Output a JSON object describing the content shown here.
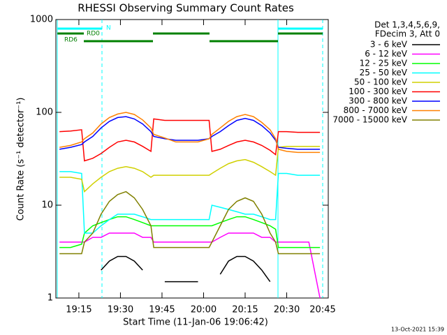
{
  "chart_data": {
    "type": "line",
    "title": "RHESSI Observing Summary Count Rates",
    "x_label": "Start Time (11-Jan-06 19:06:42)",
    "y_label": "Count Rate (s⁻¹ detector⁻¹)",
    "log_y": true,
    "grid": false,
    "legend_position": "right",
    "legend_header": [
      "Det 1,3,4,5,6,9,",
      "FDecim 3, Att 0"
    ],
    "annotations": [
      "N",
      "RD0",
      "RD6"
    ],
    "footer": "13-Oct-2021 15:39",
    "xlim": [
      6.7,
      105
    ],
    "xticks": [
      {
        "value": 15,
        "label": "19:15"
      },
      {
        "value": 30,
        "label": "19:30"
      },
      {
        "value": 45,
        "label": "19:45"
      },
      {
        "value": 60,
        "label": "20:00"
      },
      {
        "value": 75,
        "label": "20:15"
      },
      {
        "value": 90,
        "label": "20:30"
      },
      {
        "value": 105,
        "label": "20:45"
      }
    ],
    "ylim": [
      1,
      1000
    ],
    "yticks": [
      1,
      10,
      100,
      1000
    ],
    "x": [
      8,
      12,
      16,
      17,
      20,
      23,
      26,
      29,
      32,
      35,
      38,
      41,
      42,
      46,
      50,
      54,
      58,
      62,
      63,
      66,
      69,
      72,
      75,
      78,
      81,
      84,
      86,
      87,
      90,
      94,
      98,
      102
    ],
    "series": [
      {
        "name": "3 - 6 keV",
        "color": "#000000",
        "values": [
          null,
          null,
          null,
          null,
          null,
          2,
          2.5,
          2.8,
          2.8,
          2.5,
          2,
          null,
          null,
          1.5,
          1.5,
          1.5,
          1.5,
          null,
          null,
          1.8,
          2.5,
          2.8,
          2.8,
          2.5,
          2,
          1.5,
          null,
          null,
          null,
          null,
          null,
          null
        ]
      },
      {
        "name": "6 - 12 keV",
        "color": "#ff00ff",
        "values": [
          4,
          4,
          4,
          4,
          4.5,
          4.5,
          5,
          5,
          5,
          5,
          4.5,
          4.5,
          4,
          4,
          4,
          4,
          4,
          4,
          4,
          4.5,
          5,
          5,
          5,
          5,
          4.5,
          4.5,
          4,
          4,
          4,
          4,
          4,
          1
        ]
      },
      {
        "name": "12 - 25 keV",
        "color": "#00ff00",
        "values": [
          3.5,
          3.5,
          3.8,
          5,
          6,
          6.5,
          7,
          7.5,
          7.5,
          7,
          6.5,
          6,
          6,
          6,
          6,
          6,
          6,
          6,
          6,
          6.5,
          7,
          7.5,
          7.5,
          7,
          6.5,
          6,
          5.5,
          3.5,
          3.5,
          3.5,
          3.5,
          3.5
        ]
      },
      {
        "name": "25 - 50 keV",
        "color": "#00ffff",
        "values": [
          23,
          23,
          22,
          5,
          5,
          6,
          7,
          8,
          8,
          8,
          7.5,
          7,
          7,
          7,
          7,
          7,
          7,
          7,
          10,
          9.5,
          9,
          8.5,
          8,
          8,
          7.5,
          7,
          7,
          22,
          22,
          21,
          21,
          21
        ]
      },
      {
        "name": "50 - 100 keV",
        "color": "#d0d000",
        "values": [
          20,
          20,
          19,
          14,
          17,
          20,
          23,
          25,
          26,
          25,
          23,
          20,
          21,
          21,
          21,
          21,
          21,
          21,
          22,
          25,
          28,
          30,
          31,
          29,
          26,
          23,
          21,
          42,
          43,
          43,
          43,
          43
        ]
      },
      {
        "name": "100 - 300 keV",
        "color": "#ff0000",
        "values": [
          62,
          63,
          65,
          30,
          32,
          36,
          42,
          48,
          50,
          48,
          43,
          38,
          85,
          82,
          82,
          82,
          82,
          82,
          38,
          40,
          44,
          48,
          50,
          48,
          44,
          39,
          35,
          62,
          62,
          61,
          61,
          61
        ]
      },
      {
        "name": "300 - 800 keV",
        "color": "#0000ff",
        "values": [
          40,
          42,
          45,
          48,
          55,
          68,
          80,
          88,
          90,
          85,
          75,
          62,
          55,
          52,
          50,
          50,
          50,
          52,
          55,
          62,
          72,
          82,
          86,
          82,
          72,
          60,
          50,
          42,
          41,
          40,
          40,
          40
        ]
      },
      {
        "name": "800 - 7000 keV",
        "color": "#ff8000",
        "values": [
          42,
          44,
          48,
          52,
          60,
          75,
          88,
          96,
          100,
          95,
          83,
          68,
          58,
          53,
          48,
          48,
          48,
          52,
          58,
          68,
          80,
          90,
          95,
          90,
          78,
          65,
          52,
          40,
          38,
          37,
          37,
          37
        ]
      },
      {
        "name": "7000 - 15000 keV",
        "color": "#808000",
        "values": [
          3,
          3,
          3,
          4,
          5,
          8,
          11,
          13,
          14,
          12,
          9,
          6,
          3.5,
          3.5,
          3.5,
          3.5,
          3.5,
          3.5,
          4,
          6,
          9,
          11,
          12,
          11,
          8,
          5,
          4,
          3,
          3,
          3,
          3,
          3
        ]
      }
    ]
  }
}
